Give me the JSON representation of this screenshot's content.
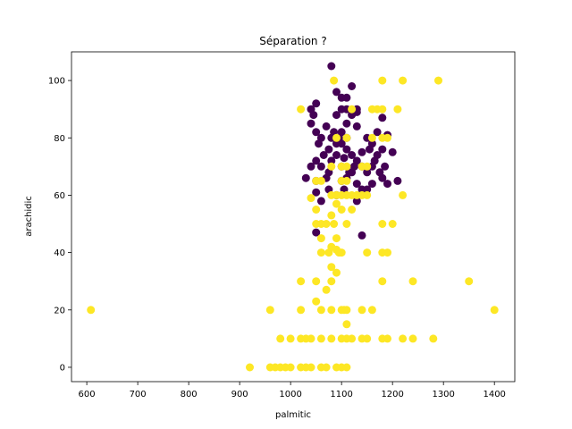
{
  "chart_data": {
    "type": "scatter",
    "title": "Séparation ?",
    "xlabel": "palmitic",
    "ylabel": "arachidic",
    "xlim": [
      570,
      1440
    ],
    "ylim": [
      -5,
      110
    ],
    "xticks": [
      600,
      700,
      800,
      900,
      1000,
      1100,
      1200,
      1300,
      1400
    ],
    "yticks": [
      0,
      20,
      40,
      60,
      80,
      100
    ],
    "grid": false,
    "legend": "none",
    "colors": {
      "class_a": "#440154",
      "class_b": "#fde725"
    },
    "series": [
      {
        "color_key": "class_a",
        "points": [
          [
            1080,
            105
          ],
          [
            1090,
            96
          ],
          [
            1100,
            94
          ],
          [
            1120,
            98
          ],
          [
            1110,
            94
          ],
          [
            1130,
            90
          ],
          [
            1040,
            90
          ],
          [
            1045,
            88
          ],
          [
            1050,
            92
          ],
          [
            1100,
            90
          ],
          [
            1110,
            90
          ],
          [
            1120,
            88
          ],
          [
            1130,
            89
          ],
          [
            1090,
            88
          ],
          [
            1070,
            84
          ],
          [
            1040,
            85
          ],
          [
            1050,
            82
          ],
          [
            1060,
            80
          ],
          [
            1055,
            78
          ],
          [
            1080,
            80
          ],
          [
            1090,
            78
          ],
          [
            1100,
            82
          ],
          [
            1110,
            80
          ],
          [
            1130,
            84
          ],
          [
            1150,
            80
          ],
          [
            1170,
            82
          ],
          [
            1180,
            87
          ],
          [
            1190,
            81
          ],
          [
            1200,
            75
          ],
          [
            1180,
            76
          ],
          [
            1160,
            78
          ],
          [
            1165,
            72
          ],
          [
            1140,
            75
          ],
          [
            1130,
            72
          ],
          [
            1120,
            74
          ],
          [
            1110,
            76
          ],
          [
            1100,
            78
          ],
          [
            1090,
            74
          ],
          [
            1080,
            72
          ],
          [
            1075,
            68
          ],
          [
            1060,
            70
          ],
          [
            1050,
            72
          ],
          [
            1040,
            70
          ],
          [
            1030,
            66
          ],
          [
            1050,
            65
          ],
          [
            1070,
            66
          ],
          [
            1100,
            65
          ],
          [
            1110,
            66
          ],
          [
            1120,
            68
          ],
          [
            1130,
            64
          ],
          [
            1140,
            62
          ],
          [
            1160,
            64
          ],
          [
            1180,
            66
          ],
          [
            1190,
            64
          ],
          [
            1210,
            65
          ],
          [
            1185,
            70
          ],
          [
            1175,
            68
          ],
          [
            1050,
            61
          ],
          [
            1060,
            58
          ],
          [
            1075,
            62
          ],
          [
            1090,
            60
          ],
          [
            1105,
            62
          ],
          [
            1130,
            58
          ],
          [
            1150,
            62
          ],
          [
            1125,
            70
          ],
          [
            1140,
            70
          ],
          [
            1150,
            68
          ],
          [
            1160,
            70
          ],
          [
            1095,
            80
          ],
          [
            1085,
            82
          ],
          [
            1105,
            73
          ],
          [
            1115,
            68
          ],
          [
            1155,
            76
          ],
          [
            1075,
            76
          ],
          [
            1065,
            74
          ],
          [
            1050,
            47
          ],
          [
            1140,
            46
          ],
          [
            1110,
            85
          ],
          [
            1100,
            70
          ],
          [
            1170,
            74
          ]
        ]
      },
      {
        "color_key": "class_b",
        "points": [
          [
            1085,
            100
          ],
          [
            1180,
            100
          ],
          [
            1220,
            100
          ],
          [
            1290,
            100
          ],
          [
            1020,
            90
          ],
          [
            1120,
            90
          ],
          [
            1160,
            90
          ],
          [
            1170,
            90
          ],
          [
            1180,
            90
          ],
          [
            1210,
            90
          ],
          [
            1160,
            80
          ],
          [
            1180,
            80
          ],
          [
            1190,
            80
          ],
          [
            1110,
            80
          ],
          [
            1090,
            80
          ],
          [
            1080,
            70
          ],
          [
            1100,
            70
          ],
          [
            1110,
            70
          ],
          [
            1140,
            70
          ],
          [
            1150,
            70
          ],
          [
            1100,
            65
          ],
          [
            1110,
            65
          ],
          [
            1050,
            65
          ],
          [
            1060,
            65
          ],
          [
            1080,
            60
          ],
          [
            1090,
            60
          ],
          [
            1100,
            60
          ],
          [
            1110,
            60
          ],
          [
            1120,
            60
          ],
          [
            1130,
            60
          ],
          [
            1140,
            60
          ],
          [
            1150,
            60
          ],
          [
            1220,
            60
          ],
          [
            1040,
            59
          ],
          [
            1090,
            57
          ],
          [
            1100,
            55
          ],
          [
            1120,
            55
          ],
          [
            1050,
            55
          ],
          [
            1080,
            53
          ],
          [
            1050,
            50
          ],
          [
            1060,
            50
          ],
          [
            1070,
            50
          ],
          [
            1085,
            50
          ],
          [
            1110,
            50
          ],
          [
            1180,
            50
          ],
          [
            1200,
            50
          ],
          [
            1060,
            45
          ],
          [
            1090,
            45
          ],
          [
            1080,
            42
          ],
          [
            1090,
            41
          ],
          [
            1075,
            40
          ],
          [
            1095,
            40
          ],
          [
            1100,
            40
          ],
          [
            1060,
            40
          ],
          [
            1150,
            40
          ],
          [
            1180,
            40
          ],
          [
            1190,
            40
          ],
          [
            1080,
            35
          ],
          [
            1090,
            33
          ],
          [
            1080,
            30
          ],
          [
            1020,
            30
          ],
          [
            1050,
            30
          ],
          [
            1180,
            30
          ],
          [
            1240,
            30
          ],
          [
            1350,
            30
          ],
          [
            1070,
            27
          ],
          [
            1050,
            23
          ],
          [
            1110,
            20
          ],
          [
            1020,
            20
          ],
          [
            1060,
            20
          ],
          [
            1080,
            20
          ],
          [
            1100,
            20
          ],
          [
            1105,
            20
          ],
          [
            1140,
            20
          ],
          [
            1160,
            20
          ],
          [
            1400,
            20
          ],
          [
            960,
            20
          ],
          [
            608,
            20
          ],
          [
            1110,
            15
          ],
          [
            980,
            10
          ],
          [
            1000,
            10
          ],
          [
            1020,
            10
          ],
          [
            1030,
            10
          ],
          [
            1040,
            10
          ],
          [
            1060,
            10
          ],
          [
            1080,
            10
          ],
          [
            1100,
            10
          ],
          [
            1110,
            10
          ],
          [
            1120,
            10
          ],
          [
            1140,
            10
          ],
          [
            1150,
            10
          ],
          [
            1180,
            10
          ],
          [
            1190,
            10
          ],
          [
            1220,
            10
          ],
          [
            1240,
            10
          ],
          [
            1280,
            10
          ],
          [
            920,
            0
          ],
          [
            960,
            0
          ],
          [
            970,
            0
          ],
          [
            980,
            0
          ],
          [
            990,
            0
          ],
          [
            1000,
            0
          ],
          [
            1020,
            0
          ],
          [
            1030,
            0
          ],
          [
            1040,
            0
          ],
          [
            1060,
            0
          ],
          [
            1070,
            0
          ],
          [
            1090,
            0
          ],
          [
            1100,
            0
          ],
          [
            1110,
            0
          ]
        ]
      }
    ]
  }
}
